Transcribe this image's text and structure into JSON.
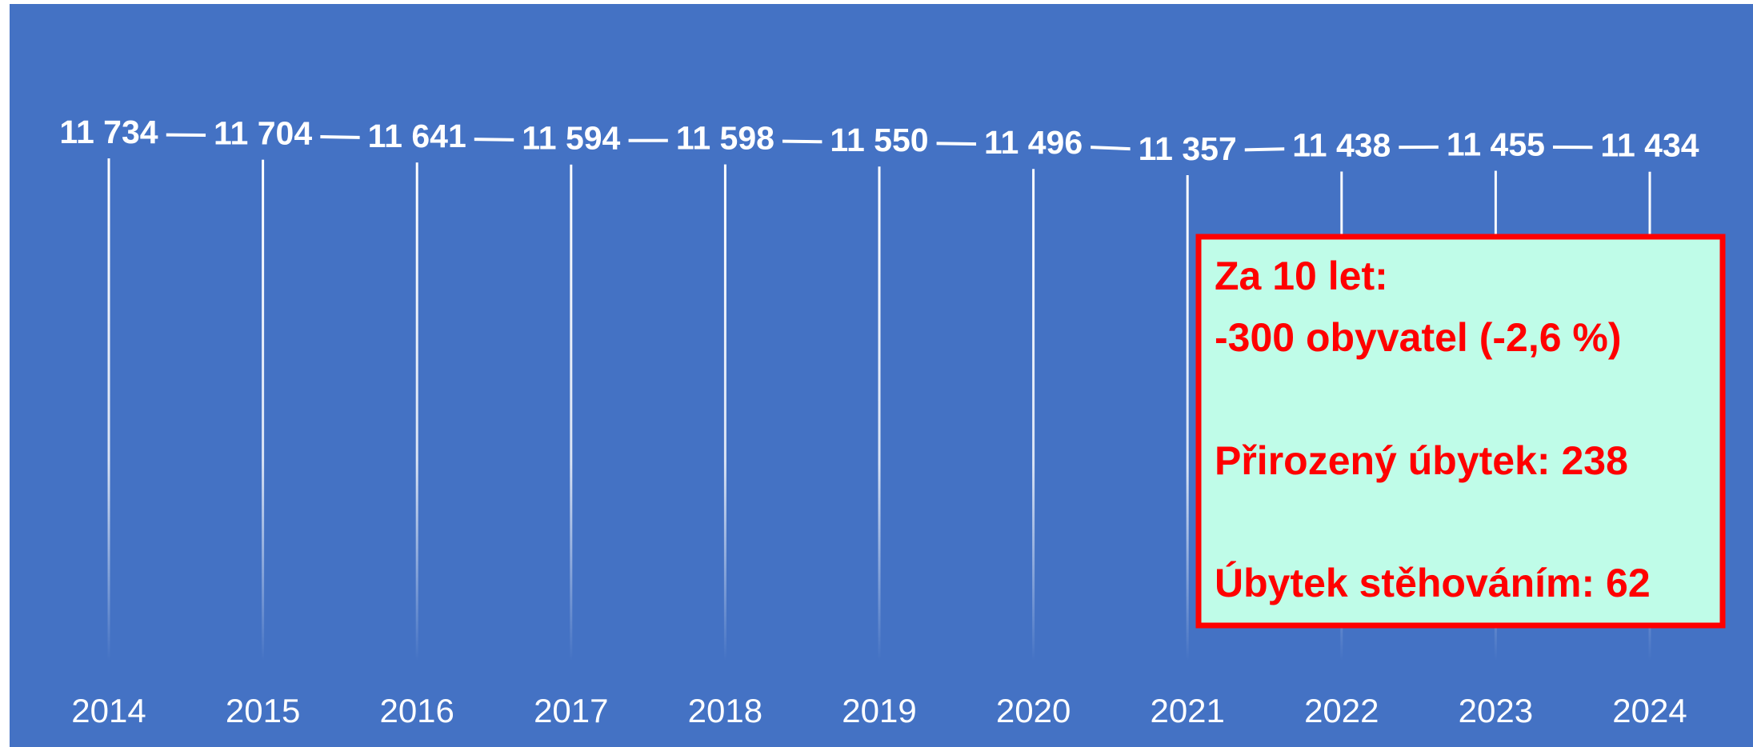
{
  "chart_data": {
    "type": "line",
    "categories": [
      "2014",
      "2015",
      "2016",
      "2017",
      "2018",
      "2019",
      "2020",
      "2021",
      "2022",
      "2023",
      "2024"
    ],
    "values": [
      11734,
      11704,
      11641,
      11594,
      11598,
      11550,
      11496,
      11357,
      11438,
      11455,
      11434
    ],
    "value_labels": [
      "11 734",
      "11 704",
      "11 641",
      "11 594",
      "11 598",
      "11 550",
      "11 496",
      "11 357",
      "11 438",
      "11 455",
      "11 434"
    ],
    "color": "#ffffff",
    "annotation": [
      "Za 10 let:",
      "-300 obyvatel (-2,6 %)",
      "Přirozený úbytek: 238",
      "Úbytek stěhováním: 62"
    ]
  }
}
